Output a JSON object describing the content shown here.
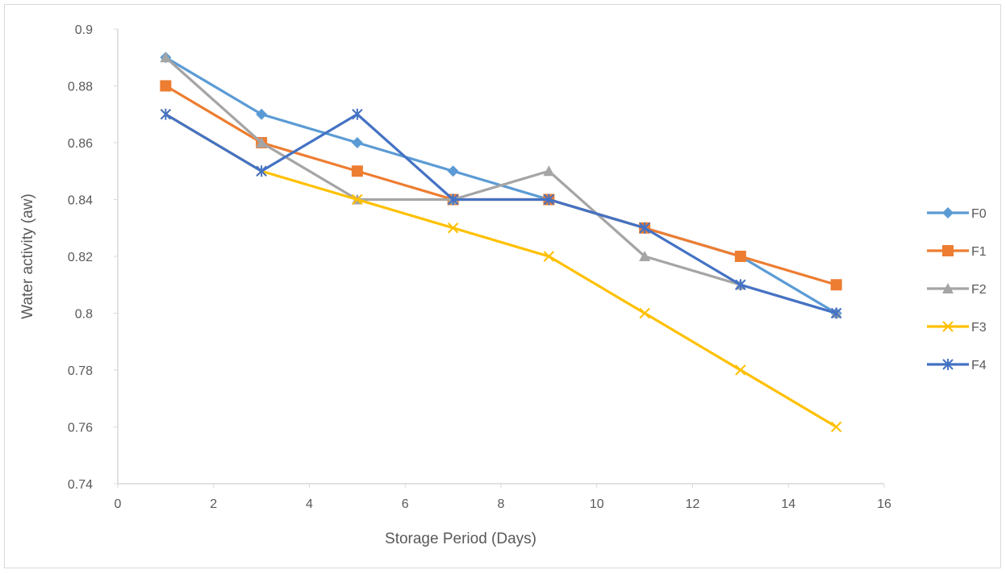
{
  "chart_data": {
    "type": "line",
    "title": "",
    "xlabel": "Storage Period (Days)",
    "ylabel": "Water activity (aw)",
    "xlim": [
      0,
      16
    ],
    "ylim": [
      0.74,
      0.9
    ],
    "x_ticks": [
      "0",
      "2",
      "4",
      "6",
      "8",
      "10",
      "12",
      "14",
      "16"
    ],
    "y_ticks": [
      "0.74",
      "0.76",
      "0.78",
      "0.8",
      "0.82",
      "0.84",
      "0.86",
      "0.88",
      "0.9"
    ],
    "grid": false,
    "legend_position": "right",
    "x": [
      1,
      3,
      5,
      7,
      9,
      11,
      13,
      15
    ],
    "series": [
      {
        "name": "F0",
        "color": "#5b9bd5",
        "marker": "diamond",
        "values": [
          0.89,
          0.87,
          0.86,
          0.85,
          0.84,
          0.83,
          0.82,
          0.8
        ]
      },
      {
        "name": "F1",
        "color": "#ed7d31",
        "marker": "square",
        "values": [
          0.88,
          0.86,
          0.85,
          0.84,
          0.84,
          0.83,
          0.82,
          0.81
        ]
      },
      {
        "name": "F2",
        "color": "#a5a5a5",
        "marker": "triangle",
        "values": [
          0.89,
          0.86,
          0.84,
          0.84,
          0.85,
          0.82,
          0.81,
          0.8
        ]
      },
      {
        "name": "F3",
        "color": "#ffc000",
        "marker": "x",
        "values": [
          0.87,
          0.85,
          0.84,
          0.83,
          0.82,
          0.8,
          0.78,
          0.76
        ]
      },
      {
        "name": "F4",
        "color": "#4472c4",
        "marker": "star",
        "values": [
          0.87,
          0.85,
          0.87,
          0.84,
          0.84,
          0.83,
          0.81,
          0.8
        ]
      }
    ]
  }
}
